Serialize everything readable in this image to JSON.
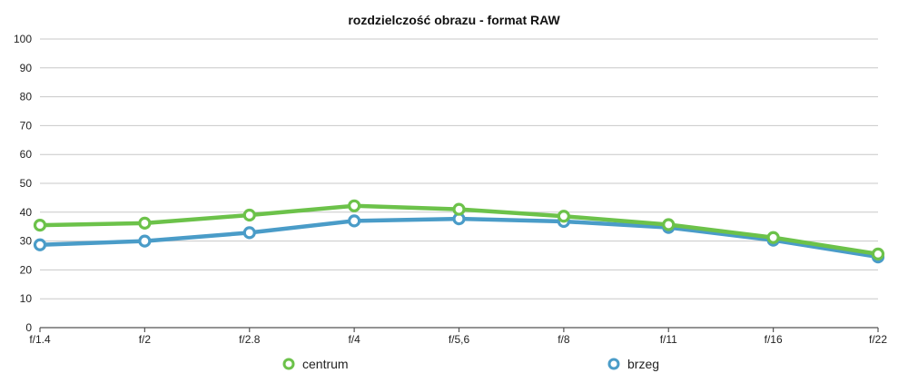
{
  "chart_data": {
    "type": "line",
    "title": "rozdzielczość obrazu - format RAW",
    "xlabel": "",
    "ylabel": "",
    "categories": [
      "f/1.4",
      "f/2",
      "f/2.8",
      "f/4",
      "f/5,6",
      "f/8",
      "f/11",
      "f/16",
      "f/22"
    ],
    "ylim": [
      0,
      100
    ],
    "yticks": [
      0,
      10,
      20,
      30,
      40,
      50,
      60,
      70,
      80,
      90,
      100
    ],
    "grid": true,
    "legend_position": "bottom",
    "series": [
      {
        "name": "centrum",
        "color": "#6cc24a",
        "values": [
          35.5,
          36.2,
          39,
          42.2,
          41,
          38.6,
          35.7,
          31.2,
          25.5
        ]
      },
      {
        "name": "brzeg",
        "color": "#4a9cc8",
        "values": [
          28.7,
          30,
          32.9,
          37,
          37.7,
          36.8,
          34.7,
          30.3,
          24.5
        ]
      }
    ]
  }
}
